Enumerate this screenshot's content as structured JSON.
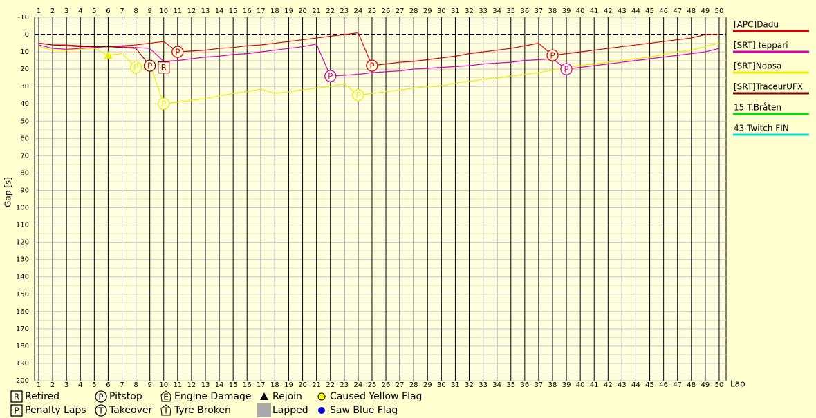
{
  "chart_data": {
    "type": "line",
    "y_label": "Gap [s]",
    "x_label": "Lap",
    "ylim": [
      -10,
      200
    ],
    "yticks": [
      -10,
      0,
      10,
      20,
      30,
      40,
      50,
      60,
      70,
      80,
      90,
      100,
      110,
      120,
      130,
      140,
      150,
      160,
      170,
      180,
      190,
      200
    ],
    "y_inverted": true,
    "xlim": [
      0.7,
      50.5
    ],
    "x": [
      1,
      2,
      3,
      4,
      5,
      6,
      7,
      8,
      9,
      10,
      11,
      12,
      13,
      14,
      15,
      16,
      17,
      18,
      19,
      20,
      21,
      22,
      23,
      24,
      25,
      26,
      27,
      28,
      29,
      30,
      31,
      32,
      33,
      34,
      35,
      36,
      37,
      38,
      39,
      40,
      41,
      42,
      43,
      44,
      45,
      46,
      47,
      48,
      49,
      50
    ],
    "grid": true,
    "series": [
      {
        "name": "[APC]Dadu",
        "color": "#d80000",
        "values": [
          5,
          6,
          6,
          6.5,
          7,
          7,
          6.5,
          6,
          5,
          4,
          10,
          9.5,
          9,
          8,
          7.5,
          6.5,
          6,
          5,
          4,
          3,
          2,
          1,
          0,
          -1,
          18,
          17,
          16,
          15.5,
          14.5,
          13.5,
          12.5,
          11,
          10,
          9,
          8,
          6.5,
          5,
          12,
          11,
          10,
          9,
          8,
          7,
          6,
          5,
          4,
          3,
          2,
          0,
          0
        ]
      },
      {
        "name": "[SRT] teppari",
        "color": "#d800b0",
        "values": [
          6,
          8,
          8.5,
          8,
          7.5,
          7,
          7,
          7.5,
          8,
          15.5,
          15,
          14,
          13,
          12.5,
          11.5,
          11,
          10,
          9,
          8,
          7,
          5.5,
          24,
          23.5,
          23,
          22,
          21.5,
          21,
          20,
          19.5,
          19,
          18.5,
          18,
          17,
          16.5,
          16,
          15,
          14.5,
          14,
          20,
          19,
          18,
          17,
          16,
          15,
          14,
          13,
          12,
          11,
          10,
          8
        ]
      },
      {
        "name": "[SRT]Nopsa",
        "color": "#eeee00",
        "values": [
          7,
          9,
          9,
          8.5,
          8,
          12,
          11,
          19,
          17,
          40,
          39,
          38,
          37,
          35.5,
          34,
          33,
          31.5,
          34,
          33,
          32,
          31,
          30,
          28.5,
          35,
          34,
          33,
          32,
          31,
          30,
          29.5,
          28,
          27,
          26,
          25,
          24,
          23,
          22,
          20.5,
          19,
          18,
          17,
          16,
          15,
          14,
          13,
          11.5,
          10,
          9,
          7,
          5
        ]
      },
      {
        "name": "[SRT]TraceurUFX",
        "color": "#800000",
        "values": [
          5,
          6,
          6.5,
          7,
          7,
          7,
          7.5,
          8,
          18,
          null,
          null,
          null,
          null,
          null,
          null,
          null,
          null,
          null,
          null,
          null,
          null,
          null,
          null,
          null,
          null,
          null,
          null,
          null,
          null,
          null,
          null,
          null,
          null,
          null,
          null,
          null,
          null,
          null,
          null,
          null,
          null,
          null,
          null,
          null,
          null,
          null,
          null,
          null,
          null,
          null
        ]
      },
      {
        "name": "15 T.Bråten",
        "color": "#00dd00",
        "values": [
          null,
          null,
          null,
          null,
          null,
          null,
          null,
          null,
          null,
          null,
          null,
          null,
          null,
          null,
          null,
          null,
          null,
          null,
          null,
          null,
          null,
          null,
          null,
          null,
          null,
          null,
          null,
          null,
          null,
          null,
          null,
          null,
          null,
          null,
          null,
          null,
          null,
          null,
          null,
          null,
          null,
          null,
          null,
          null,
          null,
          null,
          null,
          null,
          null,
          null
        ]
      },
      {
        "name": "43 Twitch FIN",
        "color": "#00dddd",
        "values": [
          null,
          null,
          null,
          null,
          null,
          null,
          null,
          null,
          null,
          null,
          null,
          null,
          null,
          null,
          null,
          null,
          null,
          null,
          null,
          null,
          null,
          null,
          null,
          null,
          null,
          null,
          null,
          null,
          null,
          null,
          null,
          null,
          null,
          null,
          null,
          null,
          null,
          null,
          null,
          null,
          null,
          null,
          null,
          null,
          null,
          null,
          null,
          null,
          null,
          null
        ]
      }
    ],
    "markers": [
      {
        "lap": 11,
        "gap": 10,
        "glyph": "P",
        "shape": "circle",
        "color": "#d80000"
      },
      {
        "lap": 25,
        "gap": 18,
        "glyph": "P",
        "shape": "circle",
        "color": "#d80000"
      },
      {
        "lap": 38,
        "gap": 12,
        "glyph": "P",
        "shape": "circle",
        "color": "#d80000"
      },
      {
        "lap": 22,
        "gap": 24,
        "glyph": "P",
        "shape": "circle",
        "color": "#d800b0"
      },
      {
        "lap": 39,
        "gap": 20,
        "glyph": "P",
        "shape": "circle",
        "color": "#d800b0"
      },
      {
        "lap": 8,
        "gap": 19,
        "glyph": "P",
        "shape": "circle",
        "color": "#eeee00"
      },
      {
        "lap": 10,
        "gap": 40,
        "glyph": "P",
        "shape": "circle",
        "color": "#eeee00"
      },
      {
        "lap": 24,
        "gap": 35,
        "glyph": "P",
        "shape": "circle",
        "color": "#eeee00"
      },
      {
        "lap": 9,
        "gap": 18,
        "glyph": "P",
        "shape": "circle",
        "color": "#800000"
      },
      {
        "lap": 10,
        "gap": 19,
        "glyph": "R",
        "shape": "square",
        "color": "#800000"
      },
      {
        "lap": 6,
        "gap": 12,
        "shape": "triangle",
        "color": "#eeee00"
      }
    ],
    "key": [
      {
        "glyph": "R",
        "shape": "square",
        "label": "Retired"
      },
      {
        "glyph": "P",
        "shape": "square",
        "label": "Penalty Laps"
      },
      {
        "glyph": "P",
        "shape": "circle",
        "label": "Pitstop"
      },
      {
        "glyph": "T",
        "shape": "circle",
        "label": "Takeover"
      },
      {
        "glyph": "E",
        "shape": "pentagon",
        "label": "Engine Damage"
      },
      {
        "glyph": "T",
        "shape": "pentagon",
        "label": "Tyre Broken"
      },
      {
        "shape": "triangle",
        "label": "Rejoin"
      },
      {
        "shape": "gray-box",
        "label": "Lapped"
      },
      {
        "shape": "yellow-dot",
        "label": "Caused Yellow Flag"
      },
      {
        "shape": "blue-dot",
        "label": "Saw Blue Flag"
      }
    ]
  }
}
